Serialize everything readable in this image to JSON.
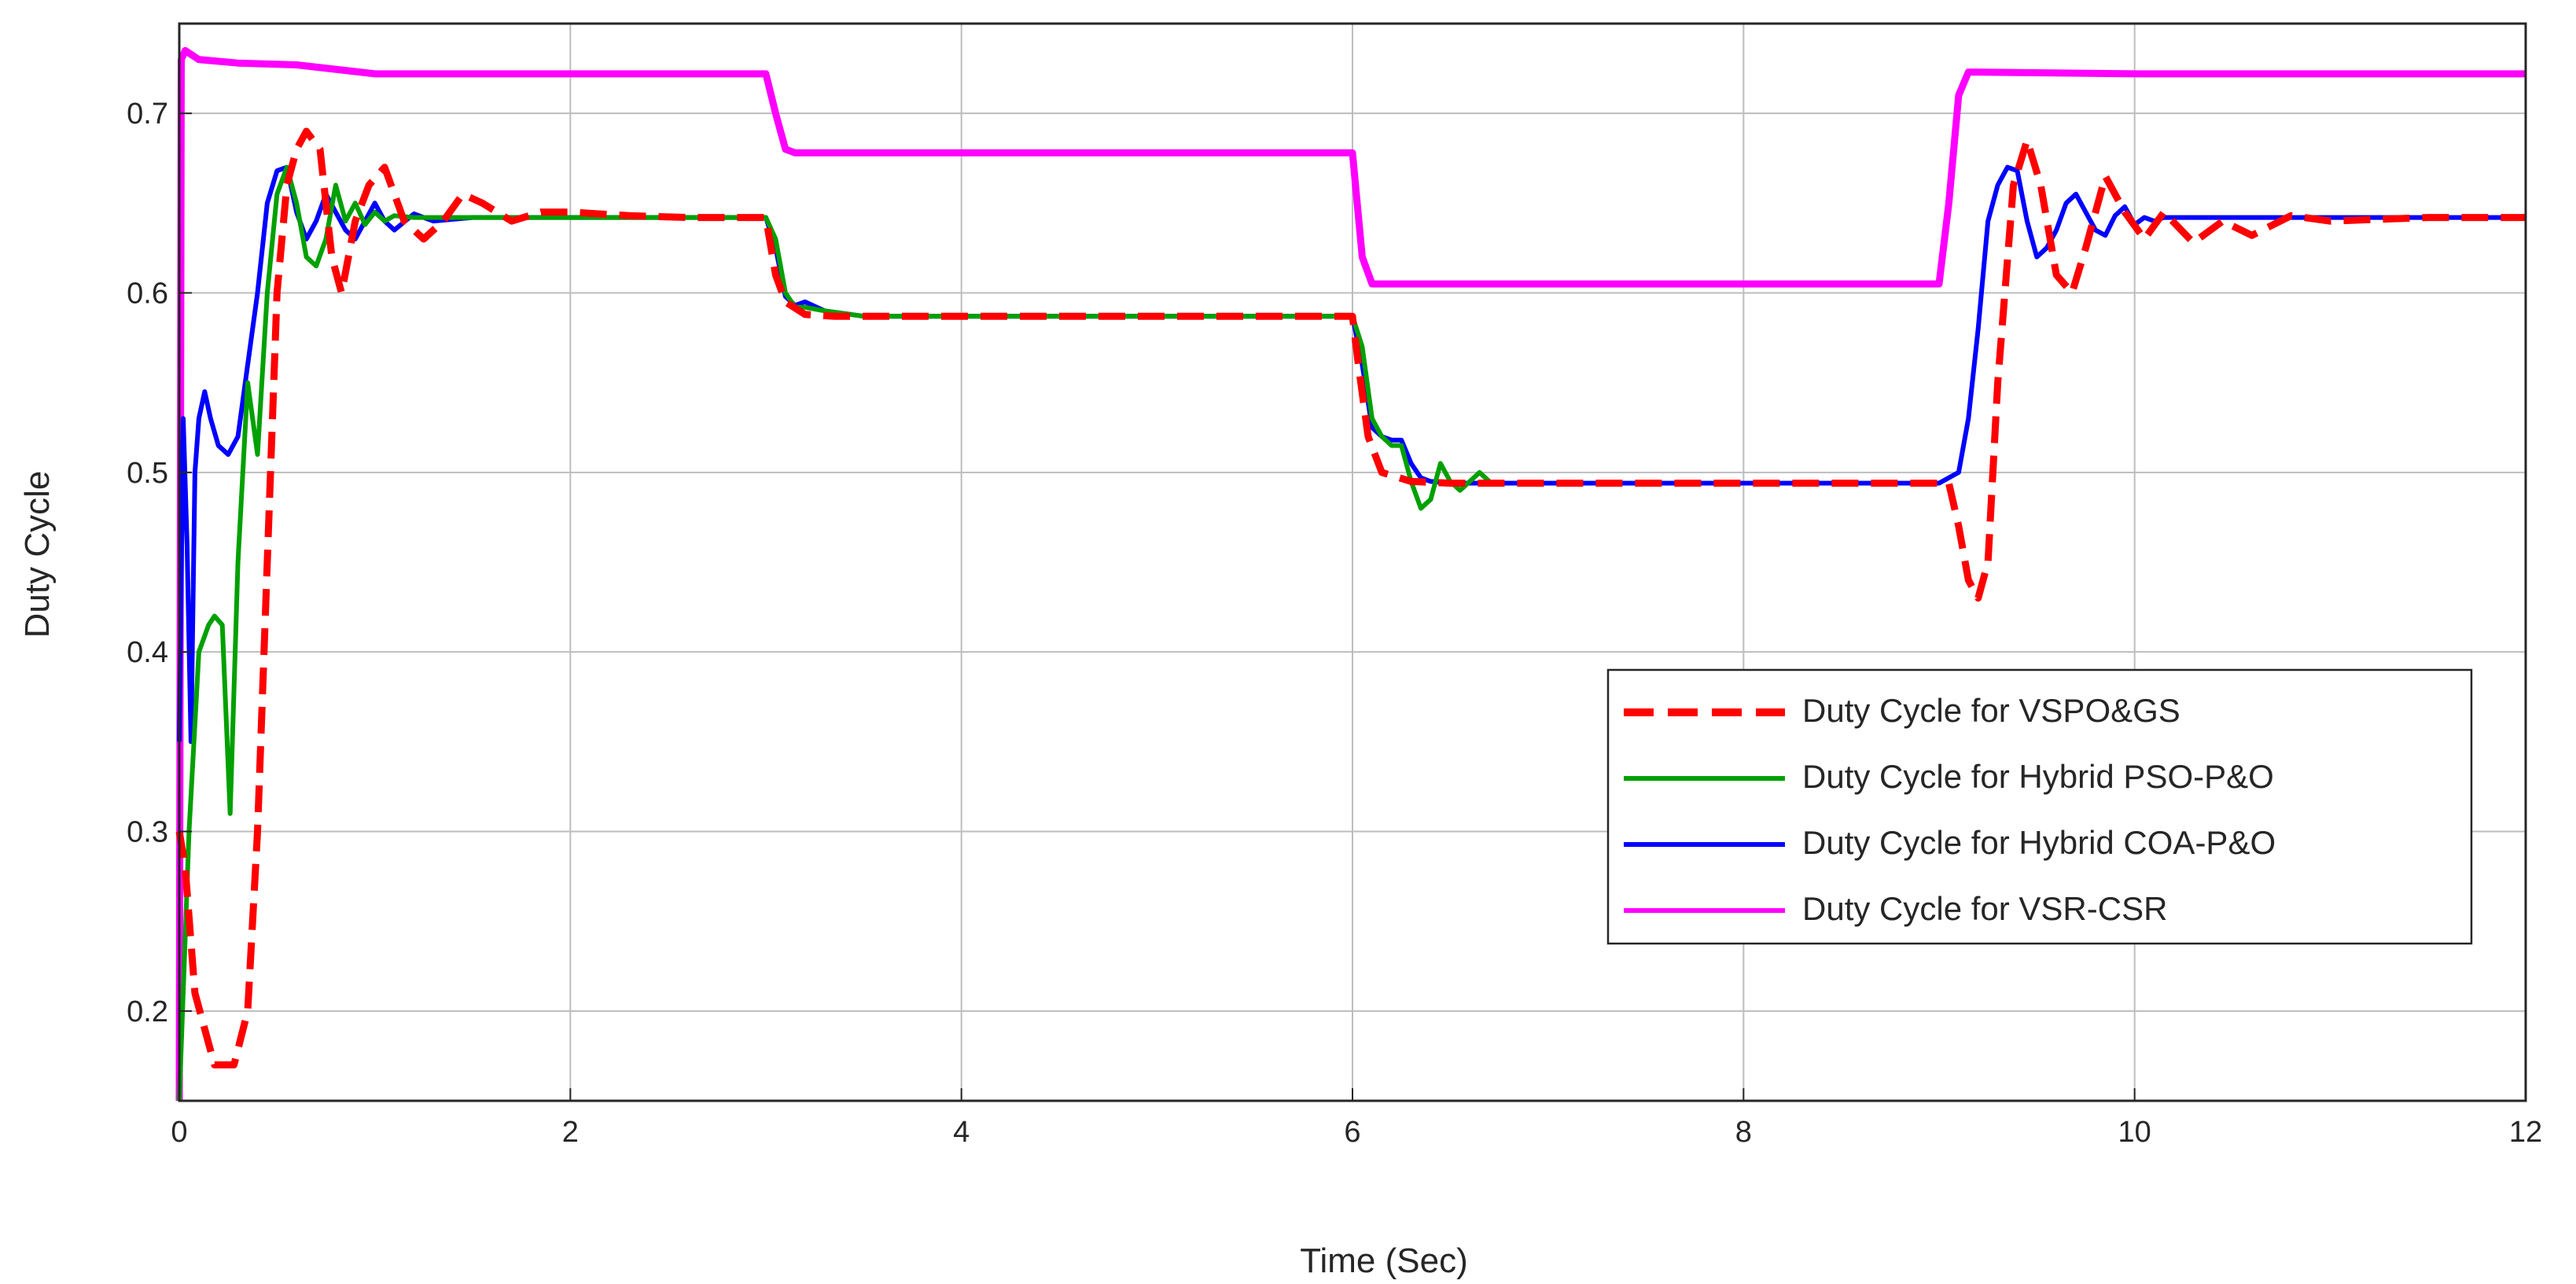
{
  "chart_data": {
    "type": "line",
    "title": "",
    "xlabel": "Time (Sec)",
    "ylabel": "Duty Cycle",
    "xlim": [
      0,
      12
    ],
    "ylim": [
      0.15,
      0.75
    ],
    "xticks": [
      "0",
      "2",
      "4",
      "6",
      "8",
      "10",
      "12"
    ],
    "yticks": [
      "0.2",
      "0.3",
      "0.4",
      "0.5",
      "0.6",
      "0.7"
    ],
    "grid": true,
    "legend_position": "lower-right",
    "series": [
      {
        "name": "Duty Cycle for VSPO&GS",
        "color": "#ff0000",
        "style": "dashed",
        "x": [
          0,
          0.03,
          0.08,
          0.13,
          0.18,
          0.28,
          0.35,
          0.4,
          0.45,
          0.5,
          0.55,
          0.6,
          0.65,
          0.72,
          0.78,
          0.83,
          0.9,
          0.97,
          1.05,
          1.15,
          1.25,
          1.35,
          1.45,
          1.55,
          1.7,
          1.85,
          2.0,
          2.3,
          2.6,
          3.0,
          3.05,
          3.1,
          3.2,
          3.35,
          3.5,
          4.5,
          5.5,
          6.0,
          6.03,
          6.08,
          6.15,
          6.3,
          6.5,
          7.5,
          8.5,
          9.05,
          9.1,
          9.15,
          9.2,
          9.25,
          9.3,
          9.38,
          9.45,
          9.52,
          9.6,
          9.68,
          9.75,
          9.85,
          9.95,
          10.05,
          10.15,
          10.3,
          10.45,
          10.6,
          10.8,
          11.0,
          11.5,
          12.0
        ],
        "values": [
          0.3,
          0.28,
          0.21,
          0.19,
          0.17,
          0.17,
          0.2,
          0.3,
          0.45,
          0.6,
          0.66,
          0.68,
          0.69,
          0.68,
          0.62,
          0.6,
          0.64,
          0.66,
          0.67,
          0.64,
          0.63,
          0.64,
          0.655,
          0.65,
          0.64,
          0.645,
          0.645,
          0.643,
          0.642,
          0.642,
          0.61,
          0.595,
          0.588,
          0.587,
          0.587,
          0.587,
          0.587,
          0.587,
          0.56,
          0.52,
          0.5,
          0.495,
          0.494,
          0.494,
          0.494,
          0.494,
          0.47,
          0.44,
          0.43,
          0.45,
          0.55,
          0.66,
          0.685,
          0.66,
          0.61,
          0.6,
          0.625,
          0.665,
          0.645,
          0.63,
          0.645,
          0.628,
          0.64,
          0.632,
          0.643,
          0.64,
          0.642,
          0.642
        ]
      },
      {
        "name": "Duty Cycle for Hybrid PSO-P&O",
        "color": "#00a000",
        "style": "solid",
        "x": [
          0,
          0.05,
          0.1,
          0.15,
          0.18,
          0.22,
          0.26,
          0.3,
          0.35,
          0.4,
          0.45,
          0.5,
          0.55,
          0.6,
          0.65,
          0.7,
          0.75,
          0.8,
          0.85,
          0.9,
          0.95,
          1.0,
          1.05,
          1.1,
          1.2,
          1.3,
          1.5,
          2.0,
          2.5,
          3.0,
          3.05,
          3.1,
          3.15,
          3.2,
          3.3,
          3.5,
          4.0,
          5.0,
          6.0,
          6.05,
          6.1,
          6.15,
          6.2,
          6.25,
          6.3,
          6.35,
          6.4,
          6.45,
          6.5,
          6.55,
          6.6,
          6.65,
          6.7
        ],
        "values": [
          0.15,
          0.3,
          0.4,
          0.415,
          0.42,
          0.415,
          0.31,
          0.45,
          0.55,
          0.51,
          0.6,
          0.655,
          0.67,
          0.65,
          0.62,
          0.615,
          0.63,
          0.66,
          0.64,
          0.65,
          0.638,
          0.645,
          0.64,
          0.643,
          0.642,
          0.642,
          0.642,
          0.642,
          0.642,
          0.642,
          0.63,
          0.6,
          0.592,
          0.592,
          0.59,
          0.587,
          0.587,
          0.587,
          0.587,
          0.57,
          0.53,
          0.52,
          0.515,
          0.515,
          0.495,
          0.48,
          0.485,
          0.505,
          0.495,
          0.49,
          0.495,
          0.5,
          0.495
        ]
      },
      {
        "name": "Duty Cycle for Hybrid COA-P&O",
        "color": "#0000ff",
        "style": "solid",
        "x": [
          0,
          0.02,
          0.04,
          0.06,
          0.08,
          0.1,
          0.13,
          0.16,
          0.2,
          0.25,
          0.3,
          0.35,
          0.4,
          0.45,
          0.5,
          0.55,
          0.6,
          0.65,
          0.7,
          0.75,
          0.8,
          0.85,
          0.9,
          0.95,
          1.0,
          1.05,
          1.1,
          1.2,
          1.3,
          1.5,
          2.0,
          2.5,
          3.0,
          3.05,
          3.1,
          3.15,
          3.2,
          3.3,
          3.5,
          4.0,
          5.0,
          6.0,
          6.05,
          6.1,
          6.15,
          6.2,
          6.25,
          6.3,
          6.35,
          6.4,
          6.5,
          7.0,
          8.0,
          9.0,
          9.1,
          9.15,
          9.2,
          9.25,
          9.3,
          9.35,
          9.4,
          9.45,
          9.5,
          9.55,
          9.6,
          9.65,
          9.7,
          9.75,
          9.8,
          9.85,
          9.9,
          9.95,
          10.0,
          10.05,
          10.1,
          10.15,
          10.2,
          10.3,
          10.5,
          11.0,
          12.0
        ],
        "values": [
          0.35,
          0.53,
          0.46,
          0.35,
          0.5,
          0.53,
          0.545,
          0.53,
          0.515,
          0.51,
          0.52,
          0.56,
          0.6,
          0.65,
          0.668,
          0.67,
          0.645,
          0.63,
          0.64,
          0.655,
          0.645,
          0.635,
          0.63,
          0.64,
          0.65,
          0.64,
          0.635,
          0.644,
          0.64,
          0.642,
          0.642,
          0.642,
          0.642,
          0.625,
          0.598,
          0.593,
          0.595,
          0.59,
          0.587,
          0.587,
          0.587,
          0.587,
          0.56,
          0.525,
          0.52,
          0.518,
          0.518,
          0.505,
          0.497,
          0.495,
          0.494,
          0.494,
          0.494,
          0.494,
          0.5,
          0.53,
          0.58,
          0.64,
          0.66,
          0.67,
          0.668,
          0.64,
          0.62,
          0.625,
          0.635,
          0.65,
          0.655,
          0.645,
          0.635,
          0.632,
          0.643,
          0.648,
          0.638,
          0.642,
          0.64,
          0.642,
          0.642,
          0.642,
          0.642,
          0.642,
          0.642
        ]
      },
      {
        "name": "Duty Cycle for VSR-CSR",
        "color": "#ff00ff",
        "style": "solid",
        "x": [
          0,
          0.01,
          0.03,
          0.1,
          0.3,
          0.6,
          1.0,
          2.0,
          3.0,
          3.05,
          3.1,
          3.15,
          4.0,
          5.0,
          6.0,
          6.05,
          6.1,
          7.0,
          8.0,
          9.0,
          9.05,
          9.1,
          9.15,
          9.2,
          10.0,
          11.0,
          12.0
        ],
        "values": [
          0.15,
          0.73,
          0.735,
          0.73,
          0.728,
          0.727,
          0.722,
          0.722,
          0.722,
          0.7,
          0.68,
          0.678,
          0.678,
          0.678,
          0.678,
          0.62,
          0.605,
          0.605,
          0.605,
          0.605,
          0.65,
          0.71,
          0.723,
          0.723,
          0.722,
          0.722,
          0.722
        ]
      }
    ]
  }
}
